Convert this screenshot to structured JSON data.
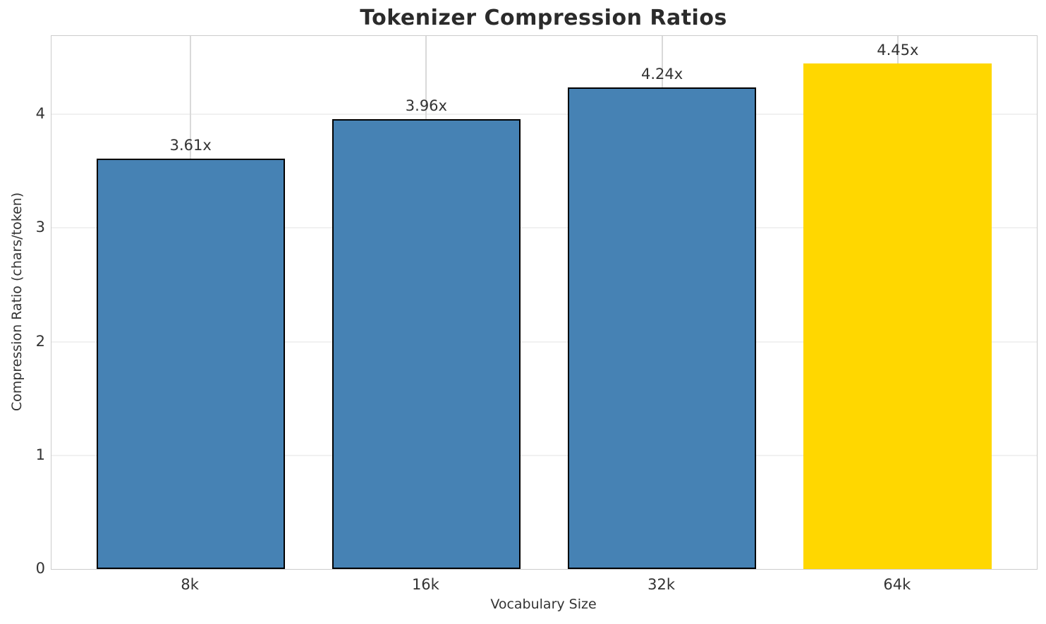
{
  "chart_data": {
    "type": "bar",
    "title": "Tokenizer Compression Ratios",
    "xlabel": "Vocabulary Size",
    "ylabel": "Compression Ratio (chars/token)",
    "categories": [
      "8k",
      "16k",
      "32k",
      "64k"
    ],
    "values": [
      3.61,
      3.96,
      4.24,
      4.45
    ],
    "bar_labels": [
      "3.61x",
      "3.96x",
      "4.24x",
      "4.45x"
    ],
    "bar_colors": [
      "#4682B4",
      "#4682B4",
      "#4682B4",
      "#FFD700"
    ],
    "bar_edge_colors": [
      "#000000",
      "#000000",
      "#000000",
      "none"
    ],
    "highlight_index": 3,
    "yticks": [
      0,
      1,
      2,
      3,
      4
    ],
    "ylim": [
      0,
      4.69
    ],
    "grid": true,
    "legend_position": "none",
    "colors": {
      "background": "#ffffff",
      "spine": "#cccccc",
      "grid_vertical": "#d9d9d9",
      "grid_horizontal": "#f1f1f1",
      "tick_text": "#333333",
      "title_text": "#2b2b2b"
    }
  }
}
